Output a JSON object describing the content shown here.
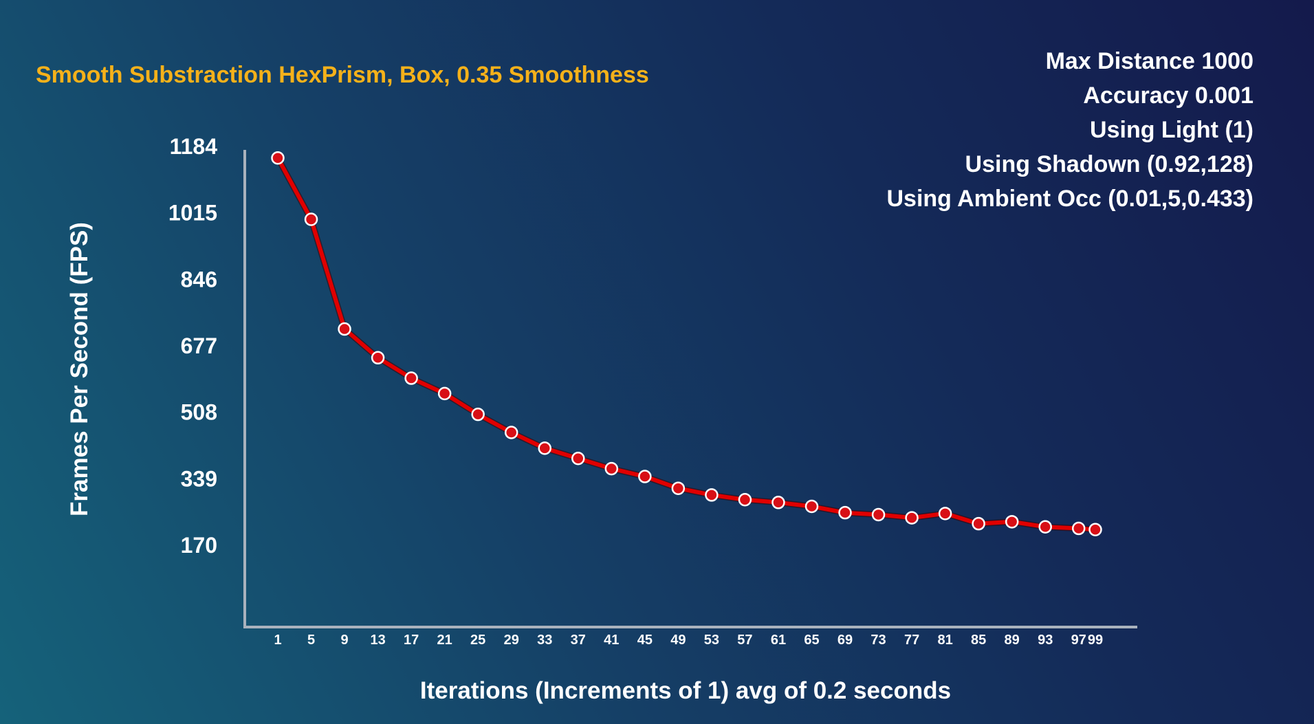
{
  "settings": [
    "Max Distance 1000",
    "Accuracy 0.001",
    "Using Light (1)",
    "Using Shadown (0.92,128)",
    "Using Ambient Occ (0.01,5,0.433)"
  ],
  "chart_data": {
    "type": "line",
    "title": "Smooth Substraction HexPrism, Box, 0.35 Smoothness",
    "xlabel": "Iterations (Increments of 1) avg of 0.2 seconds",
    "ylabel": "Frames Per Second (FPS)",
    "ylim": [
      0,
      1184
    ],
    "y_ticks": [
      170,
      339,
      508,
      677,
      846,
      1015,
      1184
    ],
    "x": [
      1,
      5,
      9,
      13,
      17,
      21,
      25,
      29,
      33,
      37,
      41,
      45,
      49,
      53,
      57,
      61,
      65,
      69,
      73,
      77,
      81,
      85,
      89,
      93,
      97,
      99
    ],
    "series": [
      {
        "values": [
          1153,
          997,
          718,
          645,
          593,
          554,
          501,
          455,
          415,
          389,
          363,
          343,
          313,
          296,
          284,
          277,
          267,
          251,
          246,
          238,
          249,
          223,
          228,
          215,
          211,
          208
        ],
        "color": "#e00000"
      }
    ],
    "grid": false,
    "legend": "none",
    "axis_color": "#a9b2bd"
  }
}
